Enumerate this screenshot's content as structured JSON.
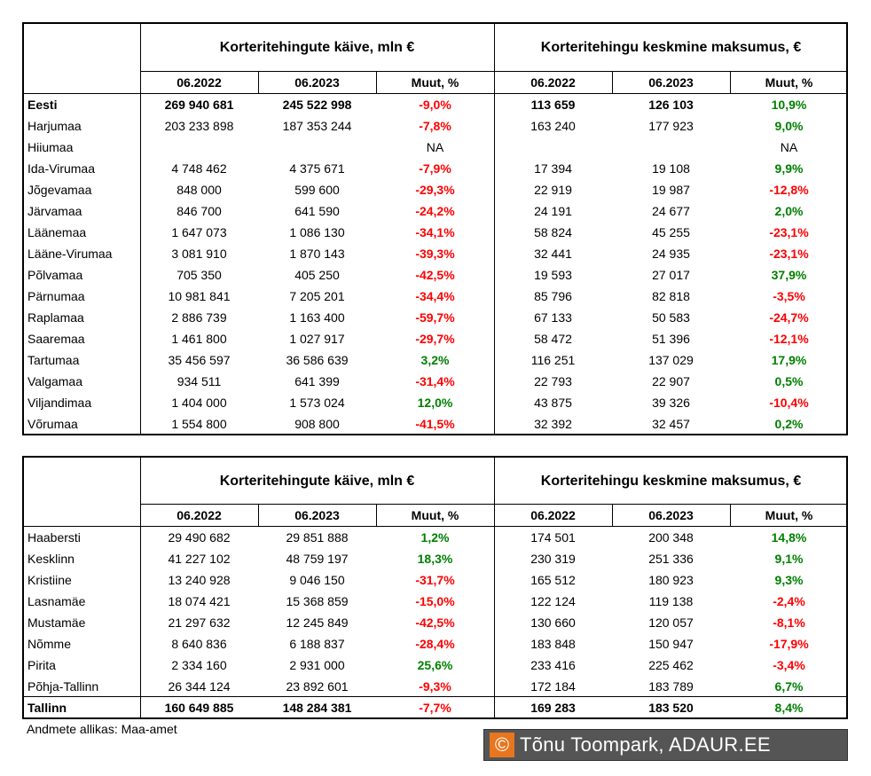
{
  "tables": [
    {
      "groups": [
        "Korteritehingute käive, mln €",
        "Korteritehingu keskmine maksumus, €"
      ],
      "columns": [
        "06.2022",
        "06.2023",
        "Muut, %",
        "06.2022",
        "06.2023",
        "Muut, %"
      ],
      "bold_rows": [
        0
      ],
      "rows": [
        [
          "Eesti",
          "269 940 681",
          "245 522 998",
          "-9,0%",
          "113 659",
          "126 103",
          "10,9%"
        ],
        [
          "Harjumaa",
          "203 233 898",
          "187 353 244",
          "-7,8%",
          "163 240",
          "177 923",
          "9,0%"
        ],
        [
          "Hiiumaa",
          null,
          null,
          "NA",
          null,
          null,
          "NA"
        ],
        [
          "Ida-Virumaa",
          "4 748 462",
          "4 375 671",
          "-7,9%",
          "17 394",
          "19 108",
          "9,9%"
        ],
        [
          "Jõgevamaa",
          "848 000",
          "599 600",
          "-29,3%",
          "22 919",
          "19 987",
          "-12,8%"
        ],
        [
          "Järvamaa",
          "846 700",
          "641 590",
          "-24,2%",
          "24 191",
          "24 677",
          "2,0%"
        ],
        [
          "Läänemaa",
          "1 647 073",
          "1 086 130",
          "-34,1%",
          "58 824",
          "45 255",
          "-23,1%"
        ],
        [
          "Lääne-Virumaa",
          "3 081 910",
          "1 870 143",
          "-39,3%",
          "32 441",
          "24 935",
          "-23,1%"
        ],
        [
          "Põlvamaa",
          "705 350",
          "405 250",
          "-42,5%",
          "19 593",
          "27 017",
          "37,9%"
        ],
        [
          "Pärnumaa",
          "10 981 841",
          "7 205 201",
          "-34,4%",
          "85 796",
          "82 818",
          "-3,5%"
        ],
        [
          "Raplamaa",
          "2 886 739",
          "1 163 400",
          "-59,7%",
          "67 133",
          "50 583",
          "-24,7%"
        ],
        [
          "Saaremaa",
          "1 461 800",
          "1 027 917",
          "-29,7%",
          "58 472",
          "51 396",
          "-12,1%"
        ],
        [
          "Tartumaa",
          "35 456 597",
          "36 586 639",
          "3,2%",
          "116 251",
          "137 029",
          "17,9%"
        ],
        [
          "Valgamaa",
          "934 511",
          "641 399",
          "-31,4%",
          "22 793",
          "22 907",
          "0,5%"
        ],
        [
          "Viljandimaa",
          "1 404 000",
          "1 573 024",
          "12,0%",
          "43 875",
          "39 326",
          "-10,4%"
        ],
        [
          "Võrumaa",
          "1 554 800",
          "908 800",
          "-41,5%",
          "32 392",
          "32 457",
          "0,2%"
        ]
      ]
    },
    {
      "groups": [
        "Korteritehingute käive, mln €",
        "Korteritehingu keskmine maksumus, €"
      ],
      "columns": [
        "06.2022",
        "06.2023",
        "Muut, %",
        "06.2022",
        "06.2023",
        "Muut, %"
      ],
      "bold_rows": [
        8
      ],
      "rows": [
        [
          "Haabersti",
          "29 490 682",
          "29 851 888",
          "1,2%",
          "174 501",
          "200 348",
          "14,8%"
        ],
        [
          "Kesklinn",
          "41 227 102",
          "48 759 197",
          "18,3%",
          "230 319",
          "251 336",
          "9,1%"
        ],
        [
          "Kristiine",
          "13 240 928",
          "9 046 150",
          "-31,7%",
          "165 512",
          "180 923",
          "9,3%"
        ],
        [
          "Lasnamäe",
          "18 074 421",
          "15 368 859",
          "-15,0%",
          "122 124",
          "119 138",
          "-2,4%"
        ],
        [
          "Mustamäe",
          "21 297 632",
          "12 245 849",
          "-42,5%",
          "130 660",
          "120 057",
          "-8,1%"
        ],
        [
          "Nõmme",
          "8 640 836",
          "6 188 837",
          "-28,4%",
          "183 848",
          "150 947",
          "-17,9%"
        ],
        [
          "Pirita",
          "2 334 160",
          "2 931 000",
          "25,6%",
          "233 416",
          "225 462",
          "-3,4%"
        ],
        [
          "Põhja-Tallinn",
          "26 344 124",
          "23 892 601",
          "-9,3%",
          "172 184",
          "183 789",
          "6,7%"
        ],
        [
          "Tallinn",
          "160 649 885",
          "148 284 381",
          "-7,7%",
          "169 283",
          "183 520",
          "8,4%"
        ]
      ]
    }
  ],
  "source": "Andmete allikas: Maa-amet",
  "watermark": {
    "symbol": "©",
    "text": "Tõnu Toompark, ADAUR.EE"
  }
}
